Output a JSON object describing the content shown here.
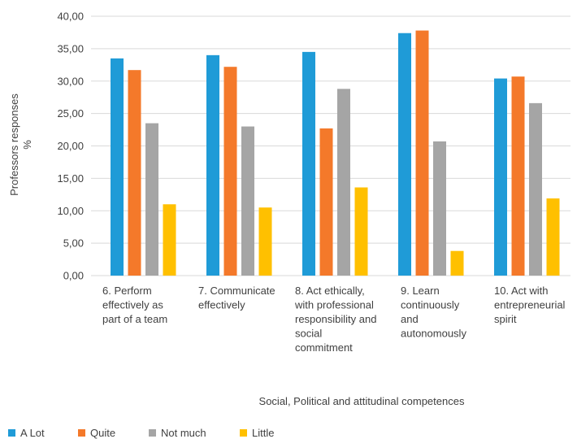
{
  "chart_data": {
    "type": "bar",
    "title": "",
    "ylabel": "Professors responses %",
    "ylabel_lines": [
      "Professors responses",
      "%"
    ],
    "xlabel": "Social, Political and attitudinal competences",
    "ylim": [
      0,
      40
    ],
    "yticks": [
      "0,00",
      "5,00",
      "10,00",
      "15,00",
      "20,00",
      "25,00",
      "30,00",
      "35,00",
      "40,00"
    ],
    "grid": true,
    "legend_position": "bottom-left",
    "categories": [
      "6. Perform effectively as part of a team",
      "7. Communicate effectively",
      "8. Act ethically, with professional responsibility and social commitment",
      "9. Learn continuously and autonomously",
      "10. Act with entrepreneurial spirit"
    ],
    "category_label_lines": [
      [
        "6. Perform",
        "effectively as",
        "part of a team"
      ],
      [
        "7. Communicate",
        "effectively"
      ],
      [
        "8. Act ethically,",
        "with professional",
        "responsibility and",
        "social",
        "commitment"
      ],
      [
        "9. Learn",
        "continuously",
        "and",
        "autonomously"
      ],
      [
        "10. Act with",
        "entrepreneurial",
        "spirit"
      ]
    ],
    "series": [
      {
        "name": "A Lot",
        "color": "#1f9bd7",
        "values": [
          33.5,
          34.0,
          34.5,
          37.4,
          30.4
        ]
      },
      {
        "name": "Quite",
        "color": "#f4792a",
        "values": [
          31.7,
          32.2,
          22.7,
          37.8,
          30.7
        ]
      },
      {
        "name": "Not much",
        "color": "#a5a5a5",
        "values": [
          23.5,
          23.0,
          28.8,
          20.7,
          26.6
        ]
      },
      {
        "name": "Little",
        "color": "#ffc000",
        "values": [
          11.0,
          10.5,
          13.6,
          3.8,
          11.9
        ]
      }
    ]
  }
}
